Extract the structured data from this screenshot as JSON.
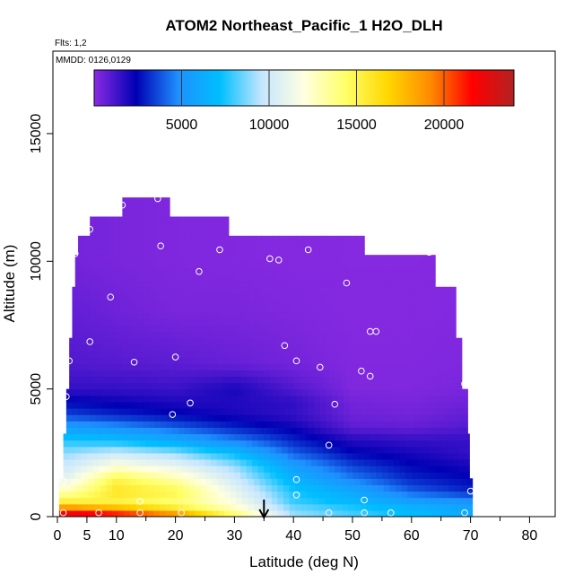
{
  "chart_data": {
    "type": "heatmap",
    "title": "ATOM2 Northeast_Pacific_1 H2O_DLH",
    "annotations": [
      "Flts: 1,2",
      "MMDD: 0126,0129"
    ],
    "xlabel": "Latitude (deg N)",
    "ylabel": "Altitude (m)",
    "xlim": [
      0,
      85
    ],
    "ylim": [
      0,
      18000
    ],
    "x_ticks": [
      0,
      5,
      10,
      20,
      30,
      40,
      50,
      60,
      70,
      80
    ],
    "y_ticks": [
      0,
      5000,
      10000,
      15000
    ],
    "colorbar": {
      "range": [
        0,
        24000
      ],
      "ticks": [
        5000,
        10000,
        15000,
        20000
      ],
      "colors": [
        "#8a2be2",
        "#0000b4",
        "#1e90ff",
        "#00bfff",
        "#c6e6ff",
        "#ffffe0",
        "#ffff66",
        "#ffd700",
        "#ff8c00",
        "#ff0000",
        "#b22222"
      ]
    },
    "marker": {
      "x": 35,
      "label": "down-arrow"
    },
    "field": {
      "altitudes": [
        0,
        250,
        500,
        1000,
        1500,
        2000,
        2500,
        3000,
        3500,
        4000,
        4500,
        5000,
        6000,
        8000,
        10000
      ],
      "latitudes": [
        2,
        10,
        20,
        30,
        40,
        50,
        60,
        70
      ],
      "values": [
        [
          23000,
          22000,
          20000,
          15000,
          9000,
          8000,
          7000,
          6000
        ],
        [
          21000,
          20000,
          17000,
          13000,
          9000,
          8000,
          7000,
          6000
        ],
        [
          16000,
          15000,
          14000,
          12000,
          8000,
          7000,
          6000,
          5500
        ],
        [
          13000,
          16000,
          15000,
          11000,
          7500,
          6000,
          4000,
          3000
        ],
        [
          11000,
          15000,
          13000,
          10000,
          6500,
          4500,
          3000,
          2500
        ],
        [
          10000,
          12000,
          11000,
          9000,
          5500,
          3500,
          2500,
          2000
        ],
        [
          9000,
          10000,
          9000,
          7000,
          4000,
          2500,
          2000,
          1500
        ],
        [
          7500,
          7000,
          6000,
          4500,
          3000,
          1800,
          1500,
          1500
        ],
        [
          5500,
          5000,
          4000,
          3000,
          2200,
          800,
          700,
          1000
        ],
        [
          3500,
          3000,
          2500,
          2000,
          1500,
          500,
          400,
          700
        ],
        [
          2500,
          2200,
          1900,
          1800,
          1600,
          400,
          300,
          500
        ],
        [
          1500,
          1500,
          1400,
          2000,
          1000,
          200,
          200,
          300
        ],
        [
          1000,
          900,
          800,
          600,
          400,
          150,
          150,
          200
        ],
        [
          700,
          500,
          300,
          300,
          200,
          100,
          100,
          150
        ],
        [
          400,
          300,
          200,
          150,
          100,
          80,
          80,
          100
        ]
      ]
    },
    "samples": [
      [
        1,
        150
      ],
      [
        7,
        150
      ],
      [
        14,
        150
      ],
      [
        21,
        150
      ],
      [
        46,
        150
      ],
      [
        52,
        150
      ],
      [
        56.5,
        150
      ],
      [
        69,
        150
      ],
      [
        14,
        600
      ],
      [
        52,
        650
      ],
      [
        40.5,
        850
      ],
      [
        70,
        1000
      ],
      [
        1,
        1400
      ],
      [
        40.5,
        1450
      ],
      [
        46,
        2800
      ],
      [
        19.5,
        4000
      ],
      [
        22.5,
        4450
      ],
      [
        47,
        4400
      ],
      [
        1.5,
        4700
      ],
      [
        69,
        5200
      ],
      [
        51.5,
        5700
      ],
      [
        53,
        5500
      ],
      [
        44.5,
        5850
      ],
      [
        13,
        6050
      ],
      [
        40.5,
        6100
      ],
      [
        20,
        6250
      ],
      [
        2,
        6100
      ],
      [
        38.5,
        6700
      ],
      [
        5.5,
        6850
      ],
      [
        53,
        7250
      ],
      [
        54,
        7250
      ],
      [
        9,
        8600
      ],
      [
        49,
        9150
      ],
      [
        24,
        9600
      ],
      [
        36,
        10100
      ],
      [
        37.5,
        10050
      ],
      [
        17.5,
        10600
      ],
      [
        27.5,
        10450
      ],
      [
        42.5,
        10450
      ],
      [
        63,
        10350
      ],
      [
        3,
        10300
      ],
      [
        3.5,
        11250
      ],
      [
        5.5,
        11250
      ],
      [
        11,
        12200
      ],
      [
        17,
        12450
      ]
    ]
  }
}
